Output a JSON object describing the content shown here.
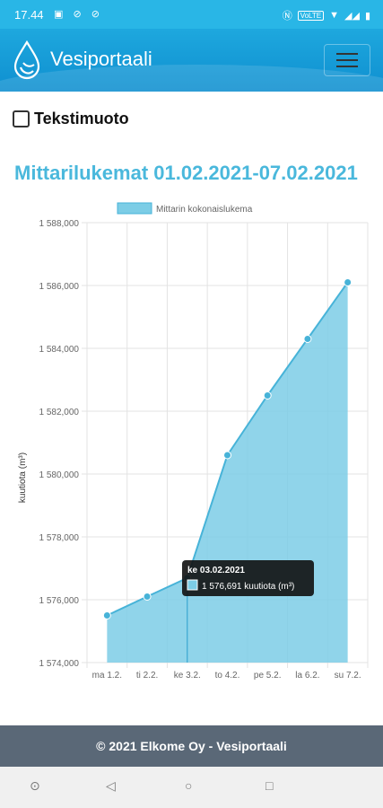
{
  "status_bar": {
    "time": "17.44",
    "network_badge": "VoLTE"
  },
  "header": {
    "title": "Vesiportaali"
  },
  "text_mode": {
    "label": "Tekstimuoto",
    "checked": false
  },
  "page": {
    "title": "Mittarilukemat 01.02.2021-07.02.2021"
  },
  "chart_data": {
    "type": "area",
    "legend": "Mittarin kokonaislukema",
    "ylabel": "kuutiota (m³)",
    "categories": [
      "ma 1.2.",
      "ti 2.2.",
      "ke 3.2.",
      "to 4.2.",
      "pe 5.2.",
      "la 6.2.",
      "su 7.2."
    ],
    "values": [
      1575500,
      1576100,
      1576691,
      1580600,
      1582500,
      1584300,
      1586100
    ],
    "ylim": [
      1574000,
      1588000
    ],
    "yticks": [
      "1 588,000",
      "1 586,000",
      "1 584,000",
      "1 582,000",
      "1 580,000",
      "1 578,000",
      "1 576,000",
      "1 574,000"
    ],
    "tooltip": {
      "title": "ke 03.02.2021",
      "value_text": "1 576,691 kuutiota (m³)"
    },
    "color": "#7ccde6",
    "line_color": "#47b3d8"
  },
  "footer": {
    "text": "© 2021 Elkome Oy - Vesiportaali"
  }
}
